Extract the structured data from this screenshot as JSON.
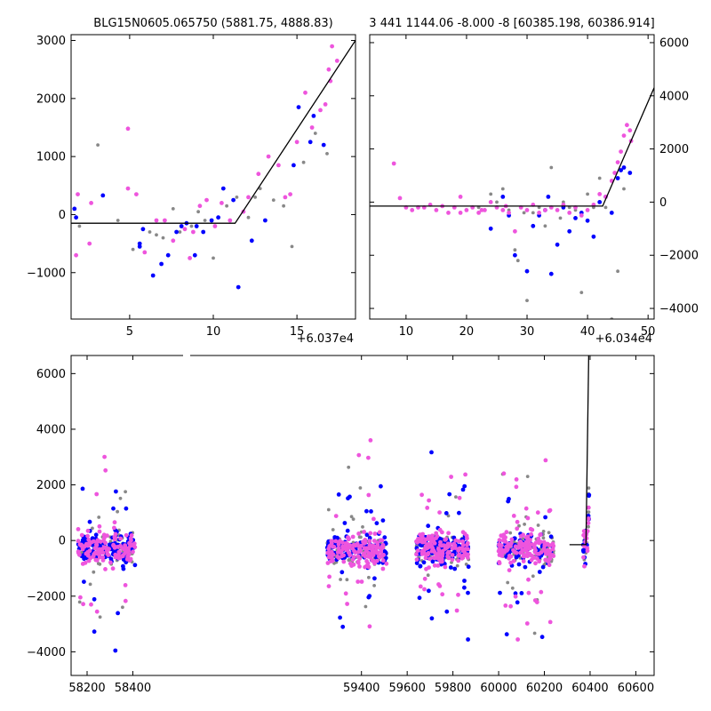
{
  "colors": {
    "grey": "#888888",
    "blue": "#0000ff",
    "pink": "#ee55dd",
    "model": "#000000"
  },
  "chart_data": [
    {
      "type": "scatter",
      "title": "BLG15N0605.065750 (5881.75, 4888.83)",
      "x_offset_label": "+6.037e4",
      "xlim": [
        1.5,
        18.5
      ],
      "ylim": [
        -1800,
        3100
      ],
      "xticks": [
        {
          "v": 5,
          "label": "5"
        },
        {
          "v": 10,
          "label": "10"
        },
        {
          "v": 15,
          "label": "15"
        }
      ],
      "yticks": [
        {
          "v": -1000,
          "label": "−1000"
        },
        {
          "v": 0,
          "label": "0"
        },
        {
          "v": 1000,
          "label": "1000"
        },
        {
          "v": 2000,
          "label": "2000"
        },
        {
          "v": 3000,
          "label": "3000"
        }
      ],
      "model": [
        [
          1.5,
          -150
        ],
        [
          11.3,
          -150
        ],
        [
          18.5,
          3000
        ]
      ],
      "series": [
        {
          "color": "grey",
          "points": [
            [
              2.0,
              -200
            ],
            [
              3.1,
              1200
            ],
            [
              4.3,
              -100
            ],
            [
              5.2,
              -600
            ],
            [
              6.2,
              -300
            ],
            [
              7.0,
              -400
            ],
            [
              7.6,
              100
            ],
            [
              8.0,
              -300
            ],
            [
              8.7,
              -200
            ],
            [
              9.5,
              -100
            ],
            [
              10.0,
              -750
            ],
            [
              10.8,
              150
            ],
            [
              11.4,
              300
            ],
            [
              12.1,
              -50
            ],
            [
              12.8,
              450
            ],
            [
              13.6,
              250
            ],
            [
              14.2,
              150
            ],
            [
              14.7,
              -550
            ],
            [
              15.4,
              900
            ],
            [
              16.1,
              1400
            ],
            [
              16.8,
              1050
            ],
            [
              6.6,
              -350
            ],
            [
              9.1,
              50
            ],
            [
              12.5,
              300
            ]
          ]
        },
        {
          "color": "blue",
          "points": [
            [
              1.7,
              100
            ],
            [
              1.8,
              -50
            ],
            [
              3.4,
              330
            ],
            [
              5.6,
              -500
            ],
            [
              5.8,
              -250
            ],
            [
              6.4,
              -1050
            ],
            [
              7.3,
              -700
            ],
            [
              7.8,
              -300
            ],
            [
              8.4,
              -150
            ],
            [
              8.9,
              -700
            ],
            [
              9.4,
              -300
            ],
            [
              9.9,
              -100
            ],
            [
              10.6,
              450
            ],
            [
              11.2,
              250
            ],
            [
              11.5,
              -1250
            ],
            [
              12.3,
              -450
            ],
            [
              13.1,
              -100
            ],
            [
              14.8,
              850
            ],
            [
              15.1,
              1850
            ],
            [
              15.8,
              1250
            ],
            [
              16.0,
              1700
            ],
            [
              16.6,
              1200
            ],
            [
              9.0,
              -200
            ],
            [
              10.3,
              -50
            ],
            [
              5.6,
              -550
            ],
            [
              6.9,
              -850
            ],
            [
              8.1,
              -200
            ]
          ]
        },
        {
          "color": "pink",
          "points": [
            [
              1.8,
              -700
            ],
            [
              1.9,
              350
            ],
            [
              2.6,
              -500
            ],
            [
              2.7,
              200
            ],
            [
              4.9,
              1480
            ],
            [
              4.9,
              450
            ],
            [
              5.4,
              350
            ],
            [
              5.9,
              -650
            ],
            [
              6.6,
              -100
            ],
            [
              7.1,
              -100
            ],
            [
              7.6,
              -450
            ],
            [
              8.3,
              -250
            ],
            [
              8.6,
              -750
            ],
            [
              9.2,
              150
            ],
            [
              9.6,
              250
            ],
            [
              10.1,
              -200
            ],
            [
              10.5,
              200
            ],
            [
              11.0,
              -100
            ],
            [
              11.8,
              50
            ],
            [
              12.7,
              700
            ],
            [
              13.3,
              1000
            ],
            [
              13.9,
              850
            ],
            [
              14.3,
              300
            ],
            [
              15.0,
              1250
            ],
            [
              15.5,
              2100
            ],
            [
              15.9,
              1500
            ],
            [
              16.4,
              1800
            ],
            [
              16.7,
              1900
            ],
            [
              17.0,
              2300
            ],
            [
              17.1,
              2900
            ],
            [
              17.4,
              2650
            ],
            [
              16.9,
              2500
            ],
            [
              12.1,
              300
            ],
            [
              14.6,
              350
            ],
            [
              8.8,
              -300
            ]
          ]
        }
      ]
    },
    {
      "type": "scatter",
      "title": "3 441 1144.06 -8.000 -8 [60385.198, 60386.914]",
      "x_offset_label": "+6.034e4",
      "xlim": [
        4,
        51
      ],
      "ylim": [
        -4400,
        6300
      ],
      "xticks": [
        {
          "v": 10,
          "label": "10"
        },
        {
          "v": 20,
          "label": "20"
        },
        {
          "v": 30,
          "label": "30"
        },
        {
          "v": 40,
          "label": "40"
        },
        {
          "v": 50,
          "label": "50"
        }
      ],
      "yticks": [
        {
          "v": -4000,
          "label": "−4000"
        },
        {
          "v": -2000,
          "label": "−2000"
        },
        {
          "v": 0,
          "label": "0"
        },
        {
          "v": 2000,
          "label": "2000"
        },
        {
          "v": 4000,
          "label": "4000"
        },
        {
          "v": 6000,
          "label": "6000"
        }
      ],
      "model": [
        [
          4,
          -150
        ],
        [
          42.5,
          -150
        ],
        [
          51,
          4300
        ]
      ],
      "series": [
        {
          "color": "grey",
          "points": [
            [
              22,
              -200
            ],
            [
              24,
              300
            ],
            [
              25,
              0
            ],
            [
              26,
              500
            ],
            [
              27,
              -300
            ],
            [
              28,
              -1800
            ],
            [
              28.5,
              -2200
            ],
            [
              29,
              -4500
            ],
            [
              30,
              -3700
            ],
            [
              31,
              -400
            ],
            [
              32,
              -200
            ],
            [
              33,
              -900
            ],
            [
              34,
              1300
            ],
            [
              36,
              0
            ],
            [
              37,
              -200
            ],
            [
              38,
              -300
            ],
            [
              39,
              -3400
            ],
            [
              40,
              300
            ],
            [
              41,
              -200
            ],
            [
              42,
              900
            ],
            [
              43,
              -200
            ],
            [
              44,
              -4400
            ],
            [
              45,
              -2600
            ],
            [
              46,
              500
            ],
            [
              29.5,
              -400
            ],
            [
              35.5,
              -600
            ]
          ]
        },
        {
          "color": "blue",
          "points": [
            [
              24,
              -1000
            ],
            [
              26,
              200
            ],
            [
              27,
              -500
            ],
            [
              28,
              -2000
            ],
            [
              30,
              -2600
            ],
            [
              31,
              -900
            ],
            [
              32,
              -500
            ],
            [
              33,
              -300
            ],
            [
              34,
              -2700
            ],
            [
              35,
              -1600
            ],
            [
              36,
              -200
            ],
            [
              37,
              -1100
            ],
            [
              38,
              -600
            ],
            [
              39,
              -400
            ],
            [
              40,
              -700
            ],
            [
              41,
              -1300
            ],
            [
              42,
              0
            ],
            [
              43,
              200
            ],
            [
              44,
              -400
            ],
            [
              45,
              900
            ],
            [
              45.5,
              1200
            ],
            [
              46,
              1300
            ],
            [
              47,
              1100
            ],
            [
              33.5,
              200
            ]
          ]
        },
        {
          "color": "pink",
          "points": [
            [
              8,
              1450
            ],
            [
              9,
              150
            ],
            [
              10,
              -200
            ],
            [
              11,
              -300
            ],
            [
              12,
              -200
            ],
            [
              13,
              -200
            ],
            [
              14,
              -100
            ],
            [
              15,
              -300
            ],
            [
              16,
              -150
            ],
            [
              17,
              -400
            ],
            [
              18,
              -200
            ],
            [
              19,
              -400
            ],
            [
              20,
              -300
            ],
            [
              21,
              -200
            ],
            [
              22,
              -400
            ],
            [
              23,
              -300
            ],
            [
              24,
              0
            ],
            [
              25,
              -200
            ],
            [
              26,
              -300
            ],
            [
              27,
              -400
            ],
            [
              28,
              -1100
            ],
            [
              29,
              -200
            ],
            [
              30,
              -300
            ],
            [
              31,
              -100
            ],
            [
              32,
              -400
            ],
            [
              33,
              -300
            ],
            [
              34,
              -200
            ],
            [
              35,
              -300
            ],
            [
              36,
              -100
            ],
            [
              37,
              -400
            ],
            [
              38,
              -200
            ],
            [
              39,
              -500
            ],
            [
              40,
              -300
            ],
            [
              41,
              -100
            ],
            [
              42,
              300
            ],
            [
              43,
              200
            ],
            [
              44,
              800
            ],
            [
              45,
              1500
            ],
            [
              45.5,
              1900
            ],
            [
              46,
              2500
            ],
            [
              46.5,
              2900
            ],
            [
              47,
              2700
            ],
            [
              47.2,
              2300
            ],
            [
              44.5,
              1100
            ],
            [
              19,
              200
            ],
            [
              22.5,
              -300
            ],
            [
              26.5,
              -150
            ]
          ]
        }
      ]
    },
    {
      "type": "scatter",
      "xlim": [
        58130,
        60680
      ],
      "ylim": [
        -4850,
        6650
      ],
      "xticks": [
        {
          "v": 58200,
          "label": "58200"
        },
        {
          "v": 58400,
          "label": "58400"
        },
        {
          "v": 59400,
          "label": "59400"
        },
        {
          "v": 59600,
          "label": "59600"
        },
        {
          "v": 59800,
          "label": "59800"
        },
        {
          "v": 60000,
          "label": "60000"
        },
        {
          "v": 60200,
          "label": "60200"
        },
        {
          "v": 60400,
          "label": "60400"
        },
        {
          "v": 60600,
          "label": "60600"
        }
      ],
      "yticks": [
        {
          "v": -4000,
          "label": "−4000"
        },
        {
          "v": -2000,
          "label": "−2000"
        },
        {
          "v": 0,
          "label": "0"
        },
        {
          "v": 2000,
          "label": "2000"
        },
        {
          "v": 4000,
          "label": "4000"
        },
        {
          "v": 6000,
          "label": "6000"
        }
      ],
      "model": [
        [
          60310,
          -150
        ],
        [
          60382,
          -150
        ],
        [
          60394,
          6650
        ]
      ],
      "seasons": [
        [
          58160,
          58410
        ],
        [
          59250,
          59510
        ],
        [
          59640,
          59870
        ],
        [
          60000,
          60240
        ],
        [
          60370,
          60398
        ]
      ],
      "series": [
        {
          "color": "grey",
          "points": []
        },
        {
          "color": "blue",
          "points": []
        },
        {
          "color": "pink",
          "points": []
        }
      ]
    }
  ]
}
